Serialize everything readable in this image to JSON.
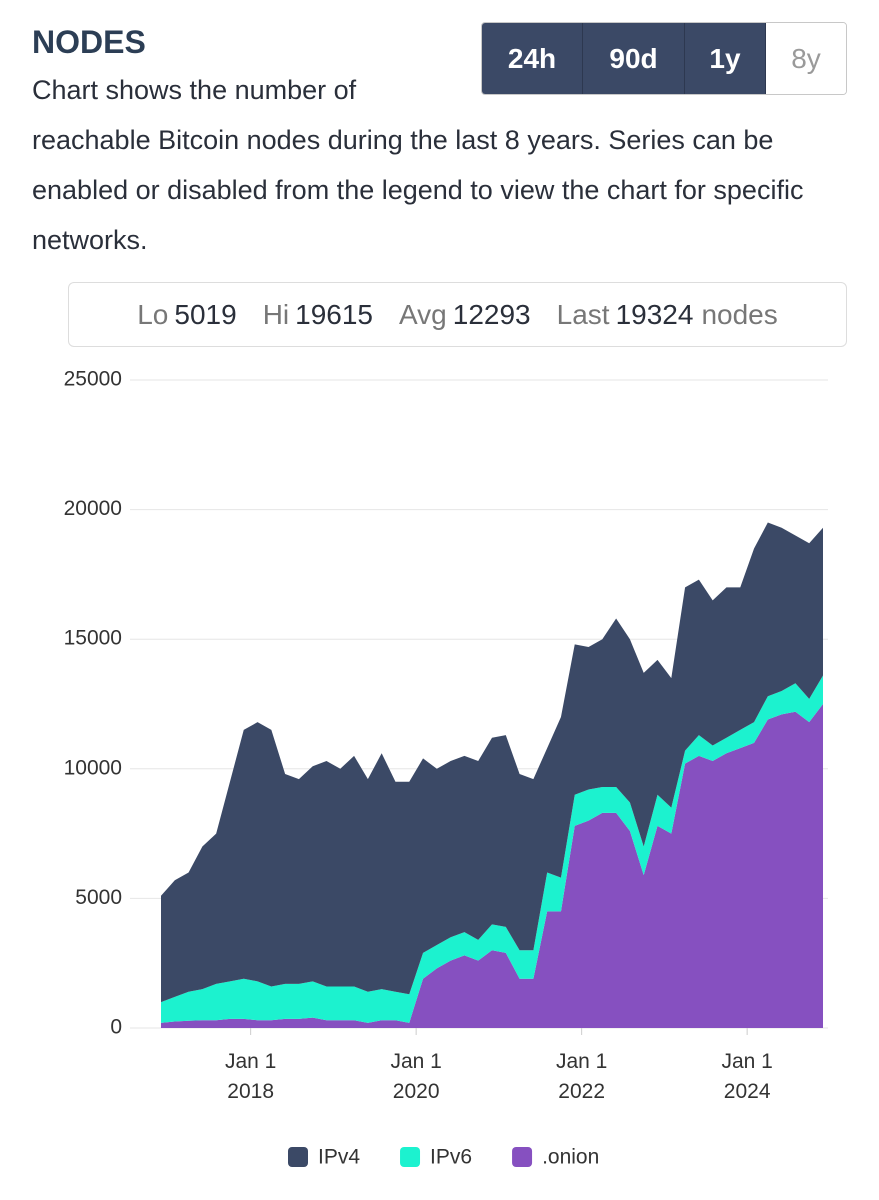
{
  "header": {
    "title": "NODES",
    "description": "Chart shows the number of reachable Bitcoin nodes during the last 8 years. Series can be enabled or disabled from the legend to view the chart for specific networks."
  },
  "range_buttons": [
    {
      "label": "24h",
      "selected": false
    },
    {
      "label": "90d",
      "selected": false
    },
    {
      "label": "1y",
      "selected": false
    },
    {
      "label": "8y",
      "selected": true
    }
  ],
  "stats": [
    {
      "label": "Lo",
      "value": 5019
    },
    {
      "label": "Hi",
      "value": 19615
    },
    {
      "label": "Avg",
      "value": 12293
    },
    {
      "label": "Last",
      "value": 19324
    }
  ],
  "stats_unit": "nodes",
  "chart_data": {
    "type": "stacked_area",
    "x": [
      "2016-12",
      "2017-02",
      "2017-04",
      "2017-06",
      "2017-08",
      "2017-10",
      "2017-12",
      "2018-02",
      "2018-04",
      "2018-06",
      "2018-08",
      "2018-10",
      "2018-12",
      "2019-02",
      "2019-04",
      "2019-06",
      "2019-08",
      "2019-10",
      "2019-12",
      "2020-02",
      "2020-04",
      "2020-06",
      "2020-08",
      "2020-10",
      "2020-12",
      "2021-02",
      "2021-04",
      "2021-06",
      "2021-08",
      "2021-10",
      "2021-12",
      "2022-02",
      "2022-04",
      "2022-06",
      "2022-08",
      "2022-10",
      "2022-12",
      "2023-02",
      "2023-04",
      "2023-06",
      "2023-08",
      "2023-10",
      "2023-12",
      "2024-02",
      "2024-04",
      "2024-06",
      "2024-08",
      "2024-10",
      "2024-12"
    ],
    "series": [
      {
        "name": "IPv4",
        "color": "#3b4966",
        "values": [
          4100,
          4500,
          4600,
          5500,
          5800,
          7700,
          9600,
          10000,
          9900,
          8100,
          7900,
          8300,
          8700,
          8400,
          8900,
          8200,
          9100,
          8100,
          8200,
          7500,
          6800,
          6800,
          6800,
          6900,
          7200,
          7400,
          6800,
          6600,
          4800,
          6200,
          5800,
          5500,
          5700,
          6500,
          6300,
          6700,
          5200,
          5000,
          6300,
          6000,
          5600,
          5800,
          5500,
          6700,
          6700,
          6300,
          5700,
          6000,
          5700
        ]
      },
      {
        "name": "IPv6",
        "color": "#1cf2cf",
        "values": [
          800,
          950,
          1120,
          1200,
          1400,
          1450,
          1550,
          1500,
          1300,
          1350,
          1350,
          1400,
          1300,
          1300,
          1300,
          1200,
          1200,
          1100,
          1100,
          1000,
          900,
          900,
          900,
          800,
          1000,
          1000,
          1100,
          1100,
          1500,
          1300,
          1200,
          1200,
          1000,
          1000,
          1100,
          1100,
          1200,
          1000,
          500,
          800,
          600,
          600,
          700,
          800,
          900,
          900,
          1100,
          900,
          1100
        ]
      },
      {
        "name": ".onion",
        "color": "#8650c0",
        "values": [
          200,
          250,
          280,
          300,
          300,
          350,
          350,
          300,
          300,
          350,
          350,
          400,
          300,
          300,
          300,
          200,
          300,
          300,
          200,
          1900,
          2300,
          2600,
          2800,
          2600,
          3000,
          2900,
          1900,
          1900,
          4500,
          4500,
          7800,
          8000,
          8300,
          8300,
          7600,
          5900,
          7800,
          7500,
          10200,
          10500,
          10300,
          10600,
          10800,
          11000,
          11900,
          12100,
          12200,
          11800,
          12500
        ]
      }
    ],
    "xlim": [
      "2016-12",
      "2024-12"
    ],
    "xticks": [
      {
        "value": "2018-01",
        "label": "Jan 1 2018"
      },
      {
        "value": "2020-01",
        "label": "Jan 1 2020"
      },
      {
        "value": "2022-01",
        "label": "Jan 1 2022"
      },
      {
        "value": "2024-01",
        "label": "Jan 1 2024"
      }
    ],
    "ylim": [
      0,
      25000
    ],
    "yticks": [
      0,
      5000,
      10000,
      15000,
      20000,
      25000
    ],
    "grid": true,
    "legend": "bottom"
  }
}
